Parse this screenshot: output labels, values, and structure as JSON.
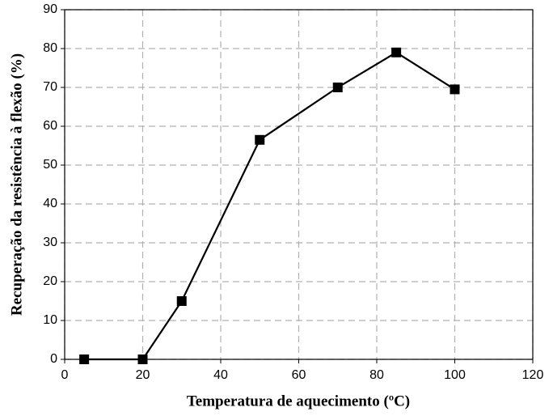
{
  "chart_data": {
    "type": "line",
    "x_label": "Temperatura de aquecimento (ºC)",
    "y_label": "Recuperação da resistência à flexão (%)",
    "x": [
      5,
      20,
      30,
      50,
      70,
      85,
      100
    ],
    "series": [
      {
        "color": "#000000",
        "values": [
          0,
          0,
          15,
          56.5,
          70,
          79,
          69.5
        ]
      }
    ],
    "xlim": [
      0,
      120
    ],
    "xticks": [
      0,
      20,
      40,
      60,
      80,
      100,
      120
    ],
    "ylim": [
      0,
      90
    ],
    "yticks": [
      0,
      10,
      20,
      30,
      40,
      50,
      60,
      70,
      80,
      90
    ],
    "grid": true
  }
}
